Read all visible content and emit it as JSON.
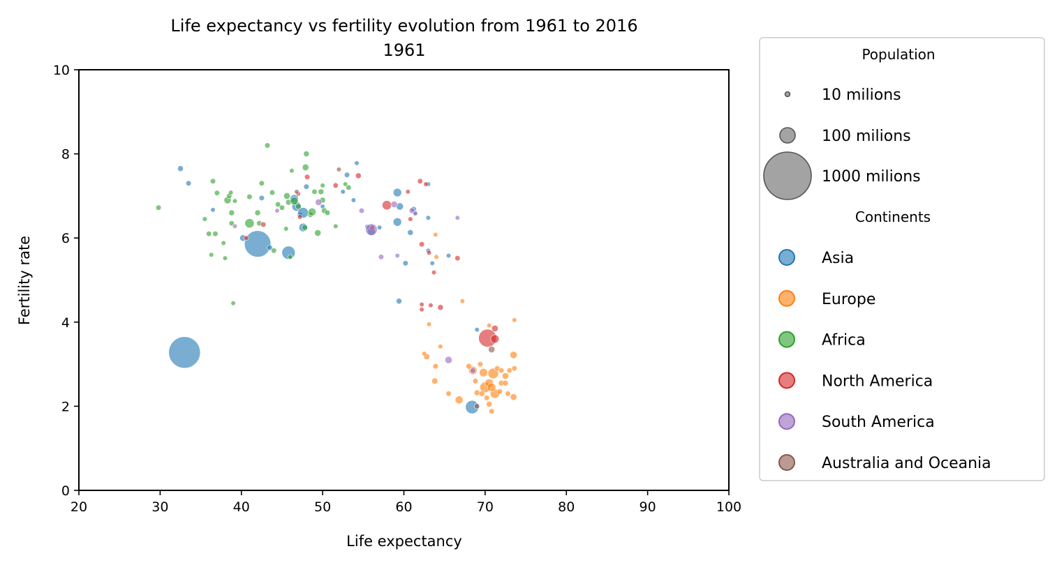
{
  "chart_data": {
    "type": "scatter",
    "title": "Life expectancy vs fertility evolution from 1961 to 2016",
    "subtitle": "1961",
    "xlabel": "Life expectancy",
    "ylabel": "Fertility rate",
    "xlim": [
      20,
      100
    ],
    "ylim": [
      0,
      10
    ],
    "xticks": [
      "20",
      "30",
      "40",
      "50",
      "60",
      "70",
      "80",
      "90",
      "100"
    ],
    "yticks": [
      "0",
      "2",
      "4",
      "6",
      "8",
      "10"
    ],
    "grid": false,
    "legend_position": "outside right",
    "size_legend": {
      "title": "Population",
      "items": [
        {
          "label": "10 milions",
          "population_millions": 10
        },
        {
          "label": "100 milions",
          "population_millions": 100
        },
        {
          "label": "1000 milions",
          "population_millions": 1000
        }
      ],
      "color": "#808080"
    },
    "continent_legend": {
      "title": "Continents"
    },
    "series": [
      {
        "name": "Asia",
        "color": "#1f77b4",
        "points": [
          [
            33.0,
            3.28,
            660
          ],
          [
            42.0,
            5.86,
            450
          ],
          [
            45.8,
            5.65,
            95
          ],
          [
            68.4,
            1.98,
            95
          ],
          [
            32.5,
            7.65,
            10
          ],
          [
            33.5,
            7.3,
            8
          ],
          [
            36.5,
            6.67,
            5
          ],
          [
            40.2,
            6.0,
            15
          ],
          [
            42.5,
            6.95,
            8
          ],
          [
            43.5,
            5.77,
            8
          ],
          [
            46.5,
            6.93,
            30
          ],
          [
            46.8,
            6.75,
            40
          ],
          [
            47.2,
            6.55,
            8
          ],
          [
            47.6,
            6.6,
            55
          ],
          [
            47.6,
            6.25,
            30
          ],
          [
            48.0,
            7.22,
            8
          ],
          [
            50.0,
            6.75,
            5
          ],
          [
            52.5,
            7.1,
            5
          ],
          [
            53.0,
            7.5,
            8
          ],
          [
            53.8,
            6.9,
            5
          ],
          [
            54.2,
            7.78,
            5
          ],
          [
            55.5,
            6.27,
            5
          ],
          [
            56.0,
            6.15,
            25
          ],
          [
            57.0,
            6.25,
            5
          ],
          [
            59.2,
            7.08,
            30
          ],
          [
            59.5,
            6.75,
            20
          ],
          [
            59.2,
            6.38,
            30
          ],
          [
            59.4,
            4.5,
            10
          ],
          [
            60.2,
            5.4,
            8
          ],
          [
            60.8,
            6.13,
            10
          ],
          [
            61.2,
            6.68,
            10
          ],
          [
            61.4,
            6.6,
            5
          ],
          [
            63.0,
            5.7,
            5
          ],
          [
            63.5,
            5.4,
            5
          ],
          [
            65.5,
            5.58,
            5
          ],
          [
            63.0,
            6.48,
            5
          ],
          [
            69.0,
            3.82,
            5
          ],
          [
            63.0,
            7.28,
            5
          ]
        ]
      },
      {
        "name": "Europe",
        "color": "#ff7f0e",
        "points": [
          [
            70.0,
            2.45,
            55
          ],
          [
            71.0,
            2.78,
            55
          ],
          [
            69.8,
            2.8,
            30
          ],
          [
            71.2,
            2.3,
            40
          ],
          [
            70.5,
            2.55,
            30
          ],
          [
            70.8,
            2.45,
            30
          ],
          [
            68.5,
            2.85,
            30
          ],
          [
            66.8,
            2.15,
            25
          ],
          [
            73.5,
            3.22,
            20
          ],
          [
            73.5,
            2.22,
            15
          ],
          [
            72.5,
            2.72,
            15
          ],
          [
            72.0,
            2.55,
            10
          ],
          [
            72.5,
            2.55,
            10
          ],
          [
            63.8,
            2.6,
            12
          ],
          [
            62.8,
            3.18,
            12
          ],
          [
            69.0,
            2.32,
            10
          ],
          [
            69.6,
            2.3,
            10
          ],
          [
            70.2,
            2.2,
            8
          ],
          [
            70.5,
            2.05,
            10
          ],
          [
            70.8,
            1.88,
            8
          ],
          [
            71.5,
            2.9,
            8
          ],
          [
            72.0,
            2.85,
            8
          ],
          [
            73.6,
            2.9,
            8
          ],
          [
            73.6,
            4.05,
            5
          ],
          [
            70.5,
            3.92,
            5
          ],
          [
            67.2,
            4.5,
            5
          ],
          [
            63.1,
            3.95,
            5
          ],
          [
            64.5,
            3.42,
            5
          ],
          [
            62.5,
            3.25,
            5
          ],
          [
            65.5,
            2.3,
            8
          ],
          [
            63.9,
            2.95,
            8
          ],
          [
            63.9,
            6.08,
            5
          ],
          [
            64.0,
            5.55,
            5
          ],
          [
            68.0,
            2.95,
            10
          ],
          [
            68.8,
            2.6,
            8
          ],
          [
            69.4,
            3.0,
            8
          ],
          [
            71.8,
            2.35,
            8
          ],
          [
            72.8,
            2.3,
            8
          ],
          [
            73.0,
            2.85,
            8
          ]
        ]
      },
      {
        "name": "Africa",
        "color": "#2ca02c",
        "points": [
          [
            29.8,
            6.72,
            8
          ],
          [
            35.5,
            6.45,
            5
          ],
          [
            36.0,
            6.1,
            8
          ],
          [
            36.3,
            5.6,
            5
          ],
          [
            36.5,
            7.35,
            8
          ],
          [
            36.8,
            6.1,
            8
          ],
          [
            37.0,
            7.07,
            8
          ],
          [
            37.8,
            5.88,
            5
          ],
          [
            38.0,
            5.52,
            5
          ],
          [
            38.3,
            6.9,
            20
          ],
          [
            38.5,
            7.0,
            8
          ],
          [
            38.7,
            7.08,
            5
          ],
          [
            38.8,
            6.6,
            10
          ],
          [
            38.8,
            6.35,
            8
          ],
          [
            39.2,
            6.88,
            5
          ],
          [
            39.0,
            4.45,
            5
          ],
          [
            41.0,
            6.35,
            40
          ],
          [
            41.0,
            6.98,
            8
          ],
          [
            42.0,
            6.6,
            10
          ],
          [
            42.2,
            6.35,
            8
          ],
          [
            42.5,
            7.3,
            8
          ],
          [
            43.2,
            8.2,
            8
          ],
          [
            43.8,
            7.08,
            8
          ],
          [
            44.0,
            5.7,
            8
          ],
          [
            44.5,
            6.8,
            8
          ],
          [
            45.0,
            6.72,
            8
          ],
          [
            45.5,
            6.22,
            5
          ],
          [
            45.6,
            7.0,
            15
          ],
          [
            45.8,
            6.85,
            10
          ],
          [
            46.0,
            5.55,
            5
          ],
          [
            46.2,
            7.6,
            5
          ],
          [
            46.5,
            6.88,
            25
          ],
          [
            47.0,
            6.75,
            10
          ],
          [
            47.8,
            6.25,
            10
          ],
          [
            47.9,
            7.68,
            15
          ],
          [
            48.0,
            8.0,
            10
          ],
          [
            48.5,
            6.55,
            8
          ],
          [
            48.7,
            6.62,
            25
          ],
          [
            49.0,
            7.1,
            8
          ],
          [
            49.4,
            6.12,
            15
          ],
          [
            49.8,
            7.1,
            10
          ],
          [
            50.0,
            6.9,
            10
          ],
          [
            50.2,
            6.65,
            10
          ],
          [
            50.6,
            6.6,
            8
          ],
          [
            51.6,
            6.28,
            5
          ],
          [
            52.8,
            7.28,
            5
          ],
          [
            53.2,
            7.2,
            8
          ],
          [
            50.0,
            7.25,
            5
          ]
        ]
      },
      {
        "name": "North America",
        "color": "#d62728",
        "points": [
          [
            70.3,
            3.62,
            190
          ],
          [
            57.9,
            6.78,
            40
          ],
          [
            71.2,
            3.6,
            30
          ],
          [
            71.2,
            3.85,
            15
          ],
          [
            40.6,
            6.0,
            5
          ],
          [
            42.7,
            6.32,
            8
          ],
          [
            47.0,
            7.05,
            5
          ],
          [
            47.2,
            6.5,
            5
          ],
          [
            48.1,
            7.45,
            8
          ],
          [
            51.6,
            7.25,
            8
          ],
          [
            54.4,
            7.48,
            10
          ],
          [
            56.1,
            6.25,
            5
          ],
          [
            60.5,
            7.1,
            5
          ],
          [
            60.8,
            6.45,
            5
          ],
          [
            62.0,
            7.35,
            8
          ],
          [
            62.2,
            5.85,
            8
          ],
          [
            62.2,
            4.42,
            5
          ],
          [
            62.2,
            4.3,
            5
          ],
          [
            62.7,
            7.28,
            5
          ],
          [
            63.1,
            5.65,
            5
          ],
          [
            63.3,
            4.4,
            5
          ],
          [
            63.7,
            5.18,
            5
          ],
          [
            64.5,
            4.35,
            10
          ],
          [
            66.6,
            5.52,
            8
          ]
        ]
      },
      {
        "name": "South America",
        "color": "#9467bd",
        "points": [
          [
            56.0,
            6.2,
            70
          ],
          [
            58.8,
            6.8,
            15
          ],
          [
            61.0,
            6.65,
            10
          ],
          [
            61.4,
            6.58,
            5
          ],
          [
            57.2,
            5.55,
            8
          ],
          [
            59.2,
            5.58,
            5
          ],
          [
            65.5,
            3.1,
            20
          ],
          [
            66.6,
            6.48,
            5
          ],
          [
            68.5,
            2.85,
            10
          ],
          [
            54.8,
            6.65,
            8
          ],
          [
            49.5,
            6.85,
            15
          ],
          [
            44.4,
            6.65,
            5
          ],
          [
            39.2,
            6.28,
            5
          ]
        ]
      },
      {
        "name": "Australia and Oceania",
        "color": "#8c564b",
        "points": [
          [
            70.8,
            3.35,
            15
          ],
          [
            69.0,
            2.0,
            8
          ],
          [
            52.0,
            7.63,
            5
          ],
          [
            46.8,
            7.1,
            5
          ]
        ]
      }
    ]
  }
}
